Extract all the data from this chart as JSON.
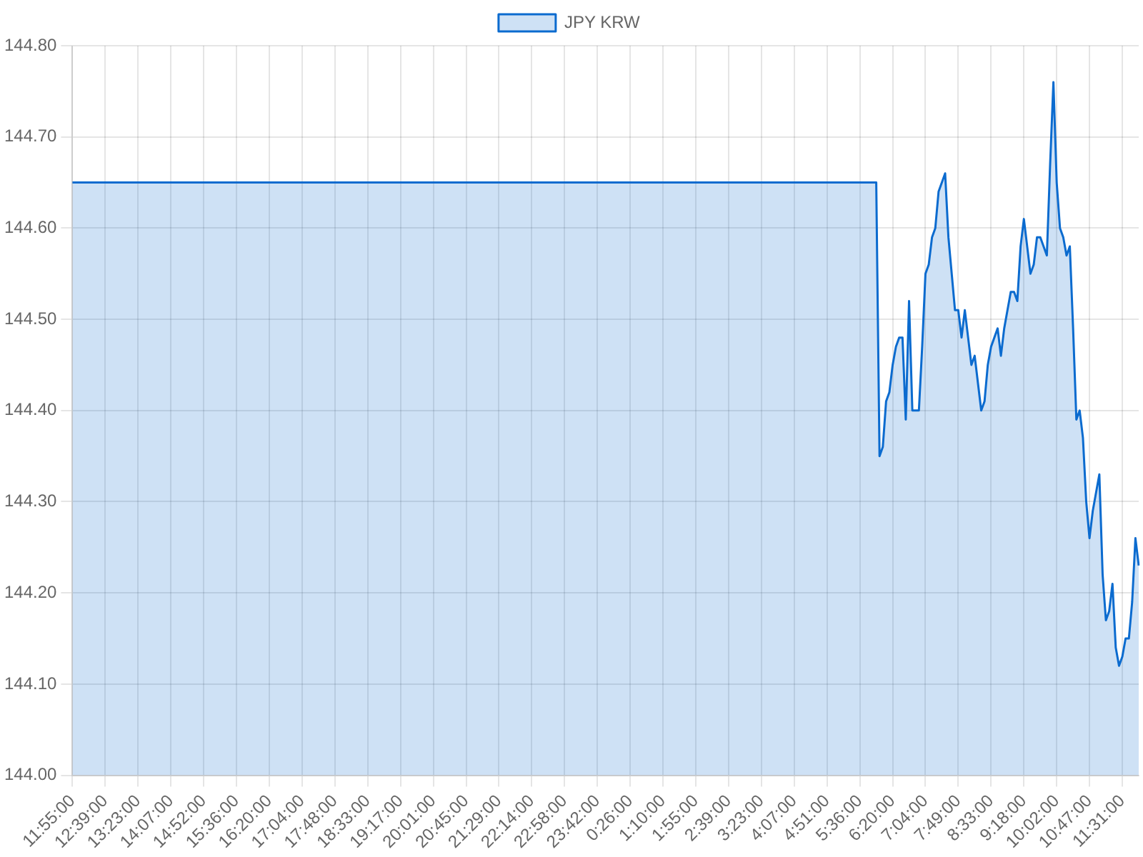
{
  "chart_data": {
    "type": "area",
    "categories": [
      "11:55:00",
      null,
      null,
      null,
      null,
      null,
      null,
      null,
      null,
      null,
      "12:39:00",
      null,
      null,
      null,
      null,
      null,
      null,
      null,
      null,
      null,
      "13:23:00",
      null,
      null,
      null,
      null,
      null,
      null,
      null,
      null,
      null,
      "14:07:00",
      null,
      null,
      null,
      null,
      null,
      null,
      null,
      null,
      null,
      "14:52:00",
      null,
      null,
      null,
      null,
      null,
      null,
      null,
      null,
      null,
      "15:36:00",
      null,
      null,
      null,
      null,
      null,
      null,
      null,
      null,
      null,
      "16:20:00",
      null,
      null,
      null,
      null,
      null,
      null,
      null,
      null,
      null,
      "17:04:00",
      null,
      null,
      null,
      null,
      null,
      null,
      null,
      null,
      null,
      "17:48:00",
      null,
      null,
      null,
      null,
      null,
      null,
      null,
      null,
      null,
      "18:33:00",
      null,
      null,
      null,
      null,
      null,
      null,
      null,
      null,
      null,
      "19:17:00",
      null,
      null,
      null,
      null,
      null,
      null,
      null,
      null,
      null,
      "20:01:00",
      null,
      null,
      null,
      null,
      null,
      null,
      null,
      null,
      null,
      "20:45:00",
      null,
      null,
      null,
      null,
      null,
      null,
      null,
      null,
      null,
      "21:29:00",
      null,
      null,
      null,
      null,
      null,
      null,
      null,
      null,
      null,
      "22:14:00",
      null,
      null,
      null,
      null,
      null,
      null,
      null,
      null,
      null,
      "22:58:00",
      null,
      null,
      null,
      null,
      null,
      null,
      null,
      null,
      null,
      "23:42:00",
      null,
      null,
      null,
      null,
      null,
      null,
      null,
      null,
      null,
      "0:26:00",
      null,
      null,
      null,
      null,
      null,
      null,
      null,
      null,
      null,
      "1:10:00",
      null,
      null,
      null,
      null,
      null,
      null,
      null,
      null,
      null,
      "1:55:00",
      null,
      null,
      null,
      null,
      null,
      null,
      null,
      null,
      null,
      "2:39:00",
      null,
      null,
      null,
      null,
      null,
      null,
      null,
      null,
      null,
      "3:23:00",
      null,
      null,
      null,
      null,
      null,
      null,
      null,
      null,
      null,
      "4:07:00",
      null,
      null,
      null,
      null,
      null,
      null,
      null,
      null,
      null,
      "4:51:00",
      null,
      null,
      null,
      null,
      null,
      null,
      null,
      null,
      null,
      "5:36:00",
      null,
      null,
      null,
      null,
      null,
      null,
      null,
      null,
      null,
      "6:20:00",
      null,
      null,
      null,
      null,
      null,
      null,
      null,
      null,
      null,
      "7:04:00",
      null,
      null,
      null,
      null,
      null,
      null,
      null,
      null,
      null,
      "7:49:00",
      null,
      null,
      null,
      null,
      null,
      null,
      null,
      null,
      null,
      "8:33:00",
      null,
      null,
      null,
      null,
      null,
      null,
      null,
      null,
      null,
      "9:18:00",
      null,
      null,
      null,
      null,
      null,
      null,
      null,
      null,
      null,
      "10:02:00",
      null,
      null,
      null,
      null,
      null,
      null,
      null,
      null,
      null,
      "10:47:00",
      null,
      null,
      null,
      null,
      null,
      null,
      null,
      null,
      null,
      "11:31:00",
      null,
      null,
      null,
      null,
      null
    ],
    "ylim": [
      144.0,
      144.8
    ],
    "yticks": [
      {
        "value": 144.0,
        "label": "144.00"
      },
      {
        "value": 144.1,
        "label": "144.10"
      },
      {
        "value": 144.2,
        "label": "144.20"
      },
      {
        "value": 144.3,
        "label": "144.30"
      },
      {
        "value": 144.4,
        "label": "144.40"
      },
      {
        "value": 144.5,
        "label": "144.50"
      },
      {
        "value": 144.6,
        "label": "144.60"
      },
      {
        "value": 144.7,
        "label": "144.70"
      },
      {
        "value": 144.8,
        "label": "144.80"
      }
    ],
    "grid": true,
    "legend": "top",
    "marker": "none",
    "line_style": "solid",
    "series": [
      {
        "name": "JPY KRW",
        "color": "#0b6bcf",
        "values": [
          144.65,
          144.65,
          144.65,
          144.65,
          144.65,
          144.65,
          144.65,
          144.65,
          144.65,
          144.65,
          144.65,
          144.65,
          144.65,
          144.65,
          144.65,
          144.65,
          144.65,
          144.65,
          144.65,
          144.65,
          144.65,
          144.65,
          144.65,
          144.65,
          144.65,
          144.65,
          144.65,
          144.65,
          144.65,
          144.65,
          144.65,
          144.65,
          144.65,
          144.65,
          144.65,
          144.65,
          144.65,
          144.65,
          144.65,
          144.65,
          144.65,
          144.65,
          144.65,
          144.65,
          144.65,
          144.65,
          144.65,
          144.65,
          144.65,
          144.65,
          144.65,
          144.65,
          144.65,
          144.65,
          144.65,
          144.65,
          144.65,
          144.65,
          144.65,
          144.65,
          144.65,
          144.65,
          144.65,
          144.65,
          144.65,
          144.65,
          144.65,
          144.65,
          144.65,
          144.65,
          144.65,
          144.65,
          144.65,
          144.65,
          144.65,
          144.65,
          144.65,
          144.65,
          144.65,
          144.65,
          144.65,
          144.65,
          144.65,
          144.65,
          144.65,
          144.65,
          144.65,
          144.65,
          144.65,
          144.65,
          144.65,
          144.65,
          144.65,
          144.65,
          144.65,
          144.65,
          144.65,
          144.65,
          144.65,
          144.65,
          144.65,
          144.65,
          144.65,
          144.65,
          144.65,
          144.65,
          144.65,
          144.65,
          144.65,
          144.65,
          144.65,
          144.65,
          144.65,
          144.65,
          144.65,
          144.65,
          144.65,
          144.65,
          144.65,
          144.65,
          144.65,
          144.65,
          144.65,
          144.65,
          144.65,
          144.65,
          144.65,
          144.65,
          144.65,
          144.65,
          144.65,
          144.65,
          144.65,
          144.65,
          144.65,
          144.65,
          144.65,
          144.65,
          144.65,
          144.65,
          144.65,
          144.65,
          144.65,
          144.65,
          144.65,
          144.65,
          144.65,
          144.65,
          144.65,
          144.65,
          144.65,
          144.65,
          144.65,
          144.65,
          144.65,
          144.65,
          144.65,
          144.65,
          144.65,
          144.65,
          144.65,
          144.65,
          144.65,
          144.65,
          144.65,
          144.65,
          144.65,
          144.65,
          144.65,
          144.65,
          144.65,
          144.65,
          144.65,
          144.65,
          144.65,
          144.65,
          144.65,
          144.65,
          144.65,
          144.65,
          144.65,
          144.65,
          144.65,
          144.65,
          144.65,
          144.65,
          144.65,
          144.65,
          144.65,
          144.65,
          144.65,
          144.65,
          144.65,
          144.65,
          144.65,
          144.65,
          144.65,
          144.65,
          144.65,
          144.65,
          144.65,
          144.65,
          144.65,
          144.65,
          144.65,
          144.65,
          144.65,
          144.65,
          144.65,
          144.65,
          144.65,
          144.65,
          144.65,
          144.65,
          144.65,
          144.65,
          144.65,
          144.65,
          144.65,
          144.65,
          144.65,
          144.65,
          144.65,
          144.65,
          144.65,
          144.65,
          144.65,
          144.65,
          144.65,
          144.65,
          144.65,
          144.65,
          144.65,
          144.65,
          144.65,
          144.65,
          144.65,
          144.65,
          144.65,
          144.65,
          144.65,
          144.65,
          144.65,
          144.65,
          144.65,
          144.65,
          144.35,
          144.36,
          144.41,
          144.42,
          144.45,
          144.47,
          144.48,
          144.48,
          144.39,
          144.52,
          144.4,
          144.4,
          144.4,
          144.47,
          144.55,
          144.56,
          144.59,
          144.6,
          144.64,
          144.65,
          144.66,
          144.59,
          144.55,
          144.51,
          144.51,
          144.48,
          144.51,
          144.48,
          144.45,
          144.46,
          144.43,
          144.4,
          144.41,
          144.45,
          144.47,
          144.48,
          144.49,
          144.46,
          144.49,
          144.51,
          144.53,
          144.53,
          144.52,
          144.58,
          144.61,
          144.58,
          144.55,
          144.56,
          144.59,
          144.59,
          144.58,
          144.57,
          144.67,
          144.76,
          144.65,
          144.6,
          144.59,
          144.57,
          144.58,
          144.49,
          144.39,
          144.4,
          144.37,
          144.3,
          144.26,
          144.29,
          144.31,
          144.33,
          144.22,
          144.17,
          144.18,
          144.21,
          144.14,
          144.12,
          144.13,
          144.15,
          144.15,
          144.19,
          144.26,
          144.23
        ]
      }
    ]
  }
}
